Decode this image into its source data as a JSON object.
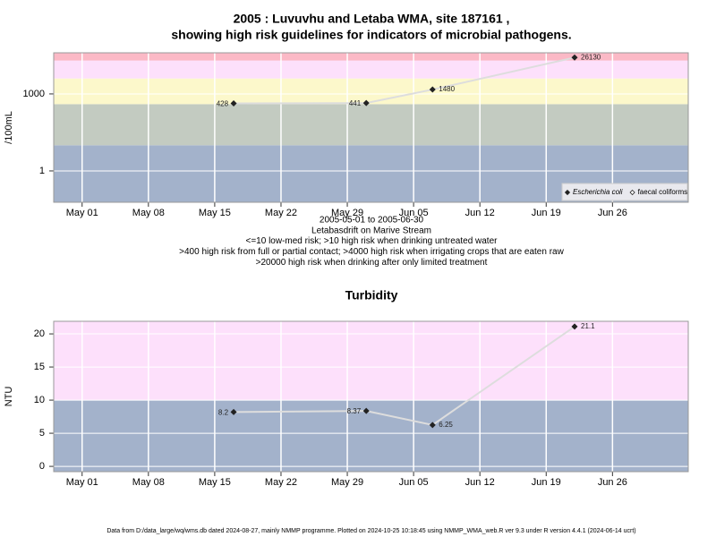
{
  "chart_data": [
    {
      "type": "line",
      "title": [
        "2005 : Luvuvhu and Letaba WMA, site 187161 ,",
        "showing high risk guidelines for indicators of microbial pathogens."
      ],
      "y_label": "/100mL",
      "notes": [
        "2005-05-01 to 2005-06-30",
        "Letabasdrift on Marive Stream",
        "<=10 low-med risk; >10 high risk when drinking untreated water",
        ">400 high risk from full or partial contact; >4000 high risk when irrigating crops that are eaten raw",
        ">20000 high risk when drinking after only limited treatment"
      ],
      "x": [
        "2005-05-17",
        "2005-05-31",
        "2005-06-07",
        "2005-06-22"
      ],
      "series": [
        {
          "name": "Escherichia coli",
          "color": "#222222",
          "values": [
            428,
            441,
            1480,
            26130
          ]
        },
        {
          "name": "faecal coliforms",
          "color": "#222222",
          "values": [
            null,
            null,
            null,
            null
          ]
        }
      ],
      "line_color": "#dddddd",
      "log_y": true,
      "ylim": [
        0.06,
        40000
      ],
      "yticks": [
        1,
        1000
      ],
      "xlim": [
        "2005-04-28",
        "2005-07-04"
      ],
      "xticks": [
        {
          "value": "2005-05-01",
          "label": "May 01"
        },
        {
          "value": "2005-05-08",
          "label": "May 08"
        },
        {
          "value": "2005-05-15",
          "label": "May 15"
        },
        {
          "value": "2005-05-22",
          "label": "May 22"
        },
        {
          "value": "2005-05-29",
          "label": "May 29"
        },
        {
          "value": "2005-06-05",
          "label": "Jun 05"
        },
        {
          "value": "2005-06-12",
          "label": "Jun 12"
        },
        {
          "value": "2005-06-19",
          "label": "Jun 19"
        },
        {
          "value": "2005-06-26",
          "label": "Jun 26"
        }
      ],
      "bands": [
        {
          "range": [
            0.06,
            10
          ],
          "color": "#a3b2cb"
        },
        {
          "range": [
            10,
            400
          ],
          "color": "#c3cbc1"
        },
        {
          "range": [
            400,
            4000
          ],
          "color": "#fcf8cb"
        },
        {
          "range": [
            4000,
            20000
          ],
          "color": "#fde0fb"
        },
        {
          "range": [
            20000,
            40000
          ],
          "color": "#fbb9c6"
        }
      ],
      "grid": true,
      "legend": "bottom-right"
    },
    {
      "type": "line",
      "title": [
        "Turbidity"
      ],
      "y_label": "NTU",
      "x": [
        "2005-05-17",
        "2005-05-31",
        "2005-06-07",
        "2005-06-22"
      ],
      "series": [
        {
          "name": null,
          "color": "#222222",
          "values": [
            8.2,
            8.37,
            6.25,
            21.1
          ]
        }
      ],
      "line_color": "#dddddd",
      "log_y": false,
      "ylim": [
        -0.8,
        21.9
      ],
      "yticks": [
        0,
        5,
        10,
        15,
        20
      ],
      "xlim": [
        "2005-04-28",
        "2005-07-04"
      ],
      "xticks": [
        {
          "value": "2005-05-01",
          "label": "May 01"
        },
        {
          "value": "2005-05-08",
          "label": "May 08"
        },
        {
          "value": "2005-05-15",
          "label": "May 15"
        },
        {
          "value": "2005-05-22",
          "label": "May 22"
        },
        {
          "value": "2005-05-29",
          "label": "May 29"
        },
        {
          "value": "2005-06-05",
          "label": "Jun 05"
        },
        {
          "value": "2005-06-12",
          "label": "Jun 12"
        },
        {
          "value": "2005-06-19",
          "label": "Jun 19"
        },
        {
          "value": "2005-06-26",
          "label": "Jun 26"
        }
      ],
      "bands": [
        {
          "range": [
            -0.8,
            10
          ],
          "color": "#a3b2cb"
        },
        {
          "range": [
            10,
            21.9
          ],
          "color": "#fde0fb"
        }
      ],
      "grid": true
    }
  ],
  "footer": "Data from D:/data_large/wq/wms.db dated 2024-08-27, mainly NMMP programme. Plotted on 2024-10-25 10:18:45 using NMMP_WMA_web.R ver 9.3 under R version 4.4.1 (2024-06-14 ucrt)"
}
